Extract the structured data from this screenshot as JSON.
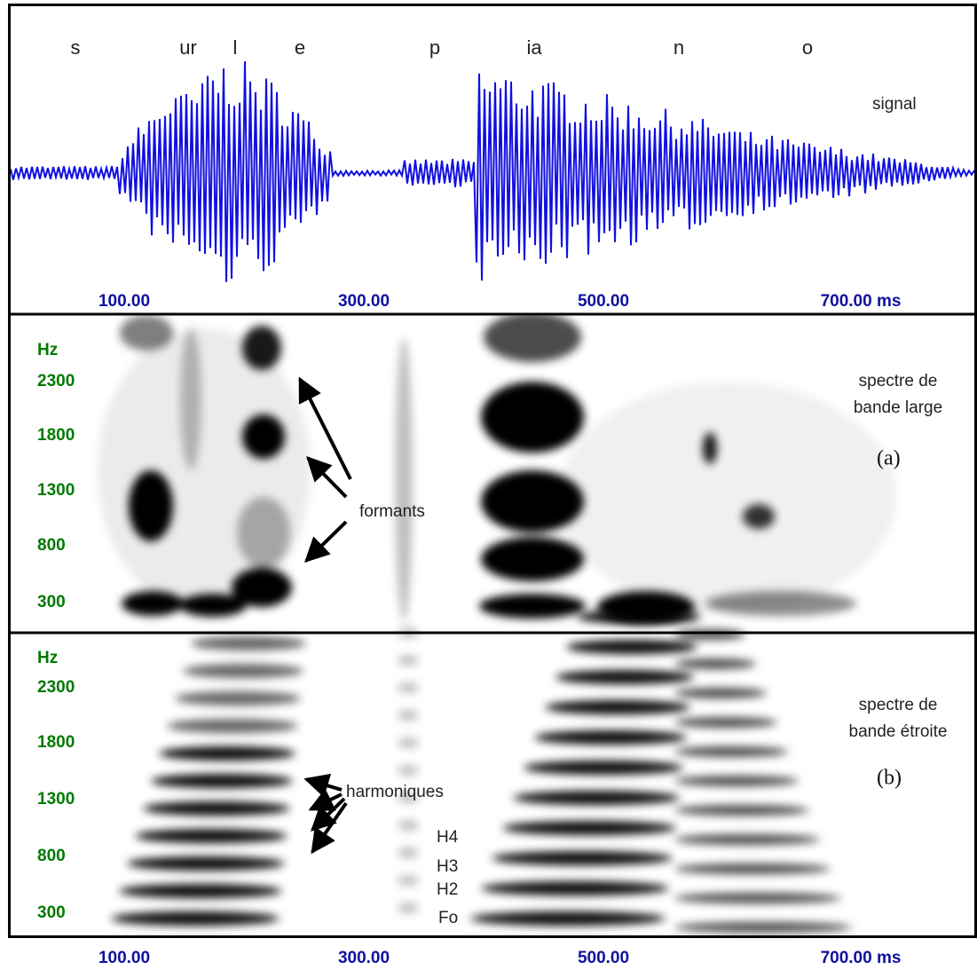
{
  "signal_panel": {
    "segments": [
      "s",
      "ur",
      "l",
      "e",
      "p",
      "ia",
      "n",
      "o"
    ],
    "label": "signal",
    "time_labels": [
      "100.00",
      "300.00",
      "500.00",
      "700.00 ms"
    ]
  },
  "wideband_panel": {
    "unit": "Hz",
    "freq_labels": [
      "2300",
      "1800",
      "1300",
      "800",
      "300"
    ],
    "label_lines": [
      "spectre de",
      "bande large"
    ],
    "tag": "(a)",
    "annotation": "formants"
  },
  "narrowband_panel": {
    "unit": "Hz",
    "freq_labels": [
      "2300",
      "1800",
      "1300",
      "800",
      "300"
    ],
    "label_lines": [
      "spectre de",
      "bande étroite"
    ],
    "tag": "(b)",
    "annotation": "harmoniques",
    "harmonic_labels": [
      "H4",
      "H3",
      "H2",
      "Fo"
    ]
  },
  "time_axis": {
    "labels": [
      "100.00",
      "300.00",
      "500.00",
      "700.00 ms"
    ]
  }
}
